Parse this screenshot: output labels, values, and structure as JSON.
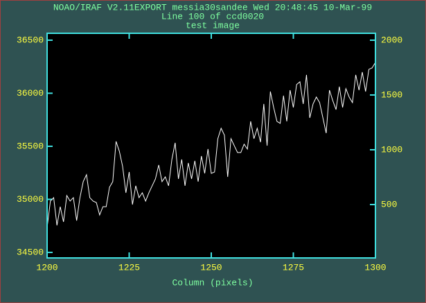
{
  "chart_data": {
    "type": "line",
    "title": "NOAO/IRAF V2.11EXPORT messia30sandee Wed 20:48:45 10-Mar-99",
    "subtitle": "Line 100 of ccd0020",
    "subtitle2": "test image",
    "xlabel": "Column (pixels)",
    "x": [
      1200,
      1201,
      1202,
      1203,
      1204,
      1205,
      1206,
      1207,
      1208,
      1209,
      1210,
      1211,
      1212,
      1213,
      1214,
      1215,
      1216,
      1217,
      1218,
      1219,
      1220,
      1221,
      1222,
      1223,
      1224,
      1225,
      1226,
      1227,
      1228,
      1229,
      1230,
      1231,
      1232,
      1233,
      1234,
      1235,
      1236,
      1237,
      1238,
      1239,
      1240,
      1241,
      1242,
      1243,
      1244,
      1245,
      1246,
      1247,
      1248,
      1249,
      1250,
      1251,
      1252,
      1253,
      1254,
      1255,
      1256,
      1257,
      1258,
      1259,
      1260,
      1261,
      1262,
      1263,
      1264,
      1265,
      1266,
      1267,
      1268,
      1269,
      1270,
      1271,
      1272,
      1273,
      1274,
      1275,
      1276,
      1277,
      1278,
      1279,
      1280,
      1281,
      1282,
      1283,
      1284,
      1285,
      1286,
      1287,
      1288,
      1289,
      1290,
      1291,
      1292,
      1293,
      1294,
      1295,
      1296,
      1297,
      1298,
      1299,
      1300
    ],
    "series": [
      {
        "color": "#ffffff",
        "values": [
          34735,
          34984,
          35016,
          34755,
          34931,
          34788,
          35036,
          34984,
          35016,
          34800,
          35016,
          35167,
          35232,
          35016,
          34984,
          34970,
          34853,
          34931,
          34931,
          35114,
          35167,
          35546,
          35454,
          35310,
          35062,
          35258,
          34951,
          35128,
          35016,
          35062,
          34984,
          35062,
          35128,
          35193,
          35324,
          35167,
          35212,
          35128,
          35376,
          35533,
          35193,
          35376,
          35128,
          35343,
          35193,
          35363,
          35167,
          35408,
          35245,
          35474,
          35245,
          35258,
          35572,
          35670,
          35605,
          35212,
          35572,
          35506,
          35441,
          35441,
          35520,
          35474,
          35735,
          35572,
          35670,
          35539,
          35899,
          35506,
          36016,
          35866,
          35735,
          35716,
          35977,
          35735,
          36029,
          35866,
          36082,
          36108,
          35899,
          36173,
          35768,
          35899,
          35964,
          35912,
          35768,
          35624,
          36029,
          35931,
          35846,
          36062,
          35866,
          36043,
          35964,
          35912,
          36173,
          36029,
          36199,
          36016,
          36225,
          36239,
          36291
        ]
      }
    ],
    "xlim": [
      1200,
      1300
    ],
    "xticks": [
      1200,
      1225,
      1250,
      1275,
      1300
    ],
    "ylim": [
      34448,
      36565
    ],
    "yticks": [
      34500,
      35000,
      35500,
      36000,
      36500
    ],
    "y2lim": [
      13,
      2063
    ],
    "y2ticks": [
      500,
      1000,
      1500,
      2000
    ],
    "background": "#000000",
    "frame_color": "#40e0e0"
  }
}
